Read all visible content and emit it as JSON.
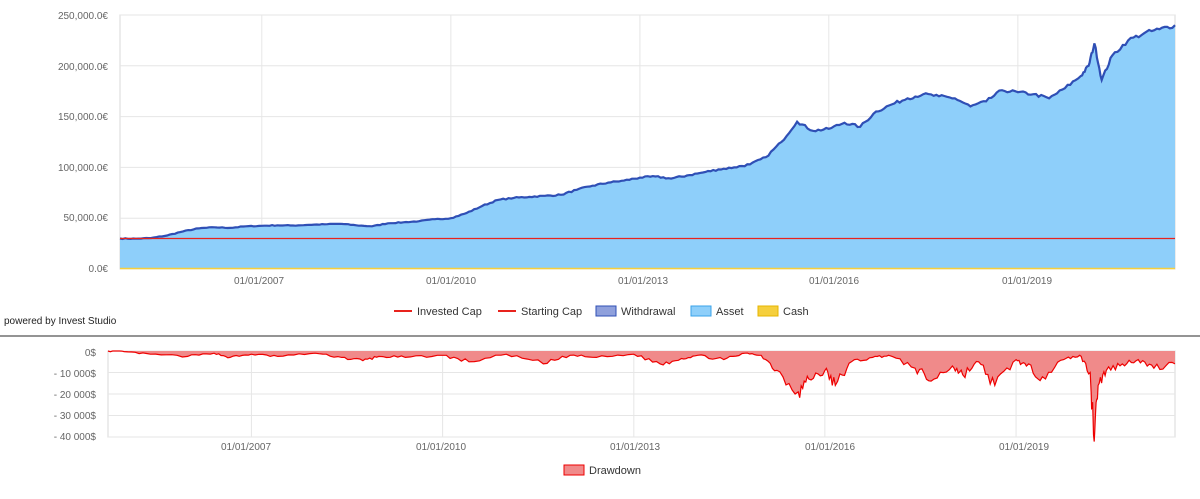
{
  "powered_by": "powered by Invest Studio",
  "colors": {
    "asset_fill": "#8ecffa",
    "asset_line": "#2f4fb5",
    "invested": "#e8231d",
    "starting": "#e8231d",
    "withdrawal": "#8fa0dc",
    "cash": "#f5cf3d",
    "drawdown_fill": "#f08a8a",
    "drawdown_line": "#ee0000",
    "grid": "#e6e6e6"
  },
  "chart_data": [
    {
      "type": "area",
      "x_domain": [
        "2004-10-01",
        "2021-06-30"
      ],
      "x_ticks": [
        "01/01/2007",
        "01/01/2010",
        "01/01/2013",
        "01/01/2016",
        "01/01/2019"
      ],
      "y_ticks": [
        "0.0€",
        "50,000.0€",
        "100,000.0€",
        "150,000.0€",
        "200,000.0€",
        "250,000.0€"
      ],
      "ylim": [
        0,
        250000
      ],
      "grid": true,
      "legend_position": "bottom",
      "legend": [
        "Invested Cap",
        "Starting Cap",
        "Withdrawal",
        "Asset",
        "Cash"
      ],
      "series": [
        {
          "name": "Asset",
          "x": [
            "2004-10-01",
            "2005-01-01",
            "2005-04-01",
            "2005-07-01",
            "2005-10-01",
            "2006-01-01",
            "2006-04-01",
            "2006-07-01",
            "2006-10-01",
            "2007-01-01",
            "2007-04-01",
            "2007-07-01",
            "2007-10-01",
            "2008-01-01",
            "2008-04-01",
            "2008-07-01",
            "2008-10-01",
            "2009-01-01",
            "2009-04-01",
            "2009-07-01",
            "2009-10-01",
            "2010-01-01",
            "2010-04-01",
            "2010-07-01",
            "2010-10-01",
            "2011-01-01",
            "2011-04-01",
            "2011-07-01",
            "2011-10-01",
            "2012-01-01",
            "2012-04-01",
            "2012-07-01",
            "2012-10-01",
            "2013-01-01",
            "2013-04-01",
            "2013-07-01",
            "2013-10-01",
            "2014-01-01",
            "2014-04-01",
            "2014-07-01",
            "2014-10-01",
            "2015-01-01",
            "2015-04-01",
            "2015-07-01",
            "2015-10-01",
            "2016-01-01",
            "2016-04-01",
            "2016-07-01",
            "2016-10-01",
            "2017-01-01",
            "2017-04-01",
            "2017-07-01",
            "2017-10-01",
            "2018-01-01",
            "2018-04-01",
            "2018-07-01",
            "2018-10-01",
            "2019-01-01",
            "2019-04-01",
            "2019-07-01",
            "2019-10-01",
            "2020-01-01",
            "2020-02-15",
            "2020-03-20",
            "2020-05-01",
            "2020-07-01",
            "2020-10-01",
            "2021-01-01",
            "2021-04-01",
            "2021-06-30"
          ],
          "values": [
            30000,
            29800,
            30500,
            33000,
            37000,
            40000,
            41000,
            40500,
            42000,
            42500,
            43000,
            42800,
            43500,
            44000,
            44500,
            43000,
            42000,
            45000,
            46000,
            47000,
            49000,
            50000,
            55000,
            62000,
            68000,
            70000,
            71000,
            72000,
            73000,
            78000,
            82000,
            85000,
            87000,
            90000,
            91000,
            89000,
            92000,
            95000,
            98000,
            100000,
            103000,
            110000,
            125000,
            145000,
            136000,
            138000,
            144000,
            140000,
            155000,
            162000,
            168000,
            172000,
            170000,
            168000,
            160000,
            165000,
            176000,
            174000,
            172000,
            168000,
            178000,
            190000,
            200000,
            222000,
            186000,
            210000,
            225000,
            232000,
            236000,
            240000
          ]
        },
        {
          "name": "Invested Cap",
          "values": [
            30000,
            30000
          ]
        },
        {
          "name": "Starting Cap",
          "values": [
            30000,
            30000
          ]
        },
        {
          "name": "Cash",
          "values": [
            0,
            0
          ]
        },
        {
          "name": "Withdrawal",
          "values": [
            0,
            0
          ]
        }
      ]
    },
    {
      "type": "area",
      "x_domain": [
        "2004-10-01",
        "2021-06-30"
      ],
      "x_ticks": [
        "01/01/2007",
        "01/01/2010",
        "01/01/2013",
        "01/01/2016",
        "01/01/2019"
      ],
      "y_ticks": [
        "0$",
        "- 10 000$",
        "- 20 000$",
        "- 30 000$",
        "- 40 000$"
      ],
      "ylim": [
        -40000,
        0
      ],
      "grid": true,
      "legend_position": "bottom",
      "legend": [
        "Drawdown"
      ],
      "series": [
        {
          "name": "Drawdown",
          "x": [
            "2004-10-01",
            "2005-01-01",
            "2005-06-01",
            "2006-01-01",
            "2006-06-01",
            "2006-09-01",
            "2007-01-01",
            "2007-06-01",
            "2008-01-01",
            "2008-06-01",
            "2008-10-01",
            "2009-01-01",
            "2009-06-01",
            "2010-01-01",
            "2010-06-01",
            "2011-01-01",
            "2011-08-01",
            "2012-01-01",
            "2012-06-01",
            "2013-01-01",
            "2013-06-01",
            "2013-10-01",
            "2014-01-01",
            "2014-06-01",
            "2014-10-01",
            "2015-01-01",
            "2015-04-01",
            "2015-08-01",
            "2015-10-01",
            "2016-01-01",
            "2016-03-01",
            "2016-06-01",
            "2016-10-01",
            "2017-01-01",
            "2017-06-01",
            "2017-09-01",
            "2018-01-01",
            "2018-03-01",
            "2018-06-01",
            "2018-09-01",
            "2019-01-01",
            "2019-03-01",
            "2019-06-01",
            "2019-10-01",
            "2020-01-01",
            "2020-03-01",
            "2020-03-20",
            "2020-04-15",
            "2020-06-01",
            "2020-09-01",
            "2020-12-01",
            "2021-03-01",
            "2021-06-30"
          ],
          "values": [
            0,
            -300,
            -1500,
            -2500,
            -1000,
            -3000,
            -1500,
            -2500,
            -1000,
            -3000,
            -4500,
            -2500,
            -3000,
            -2000,
            -5000,
            -1500,
            -6000,
            -2000,
            -3000,
            -1500,
            -6000,
            -3500,
            -2000,
            -4000,
            -1000,
            -2000,
            -9000,
            -19000,
            -13000,
            -9000,
            -16000,
            -5000,
            -3000,
            -2000,
            -8000,
            -14000,
            -7000,
            -11000,
            -5000,
            -16000,
            -4000,
            -7000,
            -12000,
            -4000,
            -2000,
            -10000,
            -39000,
            -16000,
            -9000,
            -6000,
            -4000,
            -8000,
            -6000
          ]
        }
      ]
    }
  ]
}
